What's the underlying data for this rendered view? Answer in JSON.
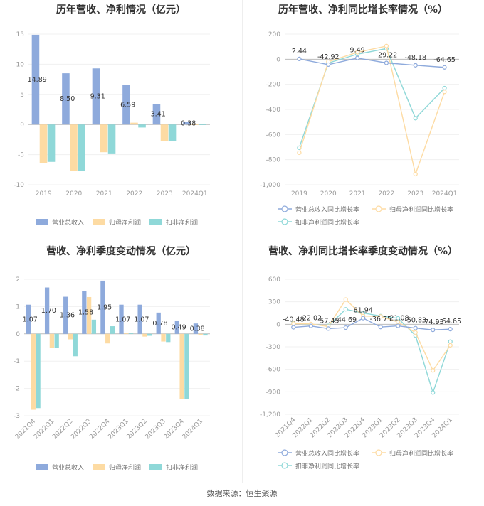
{
  "footer": "数据来源：恒生聚源",
  "colors": {
    "revenue": "#8eaadc",
    "net": "#fddba3",
    "deducted": "#8fd8d8",
    "axis": "#cccccc"
  },
  "chart_data": [
    {
      "id": "annual_amount",
      "type": "bar",
      "title": "历年营收、净利情况（亿元）",
      "categories": [
        "2019",
        "2020",
        "2021",
        "2022",
        "2023",
        "2024Q1"
      ],
      "series": [
        {
          "name": "营业总收入",
          "values": [
            14.89,
            8.5,
            9.31,
            6.59,
            3.41,
            0.38
          ],
          "labels": [
            "14.89",
            "8.50",
            "9.31",
            "6.59",
            "3.41",
            "0.38"
          ]
        },
        {
          "name": "归母净利润",
          "values": [
            -6.4,
            -7.7,
            -4.6,
            0.3,
            -2.8,
            -0.05
          ]
        },
        {
          "name": "扣非净利润",
          "values": [
            -6.2,
            -7.7,
            -4.8,
            -0.5,
            -2.8,
            -0.08
          ]
        }
      ],
      "yticks": [
        "15",
        "10",
        "5",
        "0",
        "-5",
        "-10"
      ],
      "ylim": [
        -10,
        15
      ]
    },
    {
      "id": "annual_growth",
      "type": "line",
      "title": "历年营收、净利同比增长率情况（%）",
      "categories": [
        "2019",
        "2020",
        "2021",
        "2022",
        "2023",
        "2024Q1"
      ],
      "series": [
        {
          "name": "营业总收入同比增长率",
          "values": [
            2.44,
            -42.92,
            9.49,
            -29.22,
            -48.18,
            -64.65
          ],
          "labels": [
            "2.44",
            "-42.92",
            "9.49",
            "-29.22",
            "-48.18",
            "-64.65"
          ]
        },
        {
          "name": "归母净利润同比增长率",
          "values": [
            -745,
            -20,
            55,
            105,
            -915,
            -260
          ]
        },
        {
          "name": "扣非净利润同比增长率",
          "values": [
            -705,
            -30,
            40,
            85,
            -470,
            -230
          ]
        }
      ],
      "yticks": [
        "200",
        "0",
        "-200",
        "-400",
        "-600",
        "-800",
        "-1,000"
      ],
      "ylim": [
        -1000,
        200
      ]
    },
    {
      "id": "quarterly_amount",
      "type": "bar",
      "title": "营收、净利季度变动情况（亿元）",
      "categories": [
        "2021Q4",
        "2022Q1",
        "2022Q2",
        "2022Q3",
        "2022Q4",
        "2023Q1",
        "2023Q2",
        "2023Q3",
        "2023Q4",
        "2024Q1"
      ],
      "series": [
        {
          "name": "营业总收入",
          "values": [
            1.07,
            1.7,
            1.36,
            1.58,
            1.95,
            1.07,
            1.07,
            0.78,
            0.49,
            0.38
          ],
          "labels": [
            "1.07",
            "1.70",
            "1.36",
            "1.58",
            "1.95",
            "1.07",
            "1.07",
            "0.78",
            "0.49",
            "0.38"
          ]
        },
        {
          "name": "归母净利润",
          "values": [
            -2.78,
            -0.5,
            -0.2,
            1.35,
            -0.35,
            0.02,
            -0.1,
            -0.28,
            -2.4,
            -0.05
          ]
        },
        {
          "name": "扣非净利润",
          "values": [
            -2.72,
            -0.5,
            -0.82,
            0.52,
            0.28,
            0.02,
            -0.07,
            -0.3,
            -2.4,
            -0.06
          ]
        }
      ],
      "yticks": [
        "2",
        "1",
        "0",
        "-1",
        "-2",
        "-3"
      ],
      "ylim": [
        -3,
        2
      ]
    },
    {
      "id": "quarterly_growth",
      "type": "line",
      "title": "营收、净利同比增长率季度变动情况（%）",
      "categories": [
        "2021Q4",
        "2022Q1",
        "2022Q2",
        "2022Q3",
        "2022Q4",
        "2023Q1",
        "2023Q2",
        "2023Q3",
        "2023Q4",
        "2024Q1"
      ],
      "series": [
        {
          "name": "营业总收入同比增长率",
          "values": [
            -40.48,
            -22.02,
            -57.45,
            -44.69,
            81.94,
            -36.75,
            -21.08,
            -50.83,
            -74.93,
            -64.65
          ],
          "labels": [
            "-40.48",
            "-22.02",
            "-57.45",
            "-44.69",
            "81.94",
            "-36.75",
            "-21.08",
            "-50.83",
            "-74.93",
            "-64.65"
          ]
        },
        {
          "name": "归母净利润同比增长率",
          "values": [
            10,
            5,
            -30,
            330,
            110,
            105,
            30,
            -110,
            -615,
            -280
          ]
        },
        {
          "name": "扣非净利润同比增长率",
          "values": [
            15,
            0,
            -20,
            200,
            150,
            110,
            80,
            -150,
            -910,
            -230
          ]
        }
      ],
      "yticks": [
        "600",
        "300",
        "0",
        "-300",
        "-600",
        "-900",
        "-1,200"
      ],
      "ylim": [
        -1200,
        600
      ]
    }
  ]
}
